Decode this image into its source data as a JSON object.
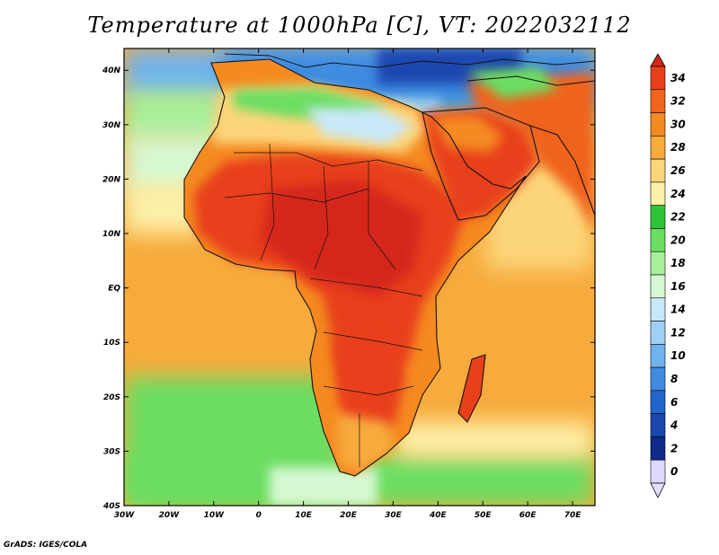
{
  "title": "Temperature at 1000hPa [C], VT: 2022032112",
  "credit": "GrADS: IGES/COLA",
  "map": {
    "lon_range": [
      -30,
      75
    ],
    "lat_range": [
      -40,
      44
    ],
    "lon_ticks": [
      "30W",
      "20W",
      "10W",
      "0",
      "10E",
      "20E",
      "30E",
      "40E",
      "50E",
      "60E",
      "70E"
    ],
    "lat_ticks": [
      "40N",
      "30N",
      "20N",
      "10N",
      "EQ",
      "10S",
      "20S",
      "30S",
      "40S"
    ]
  },
  "colorbar": {
    "labels": [
      "34",
      "32",
      "30",
      "28",
      "26",
      "24",
      "22",
      "20",
      "18",
      "16",
      "14",
      "12",
      "10",
      "8",
      "6",
      "4",
      "2",
      "0"
    ],
    "colors": [
      "#e8401a",
      "#f0641c",
      "#f58a20",
      "#f7ab3c",
      "#fcd57a",
      "#fdf0a8",
      "#2ec43a",
      "#6bde62",
      "#a8f09a",
      "#d6f8d2",
      "#c8e8fa",
      "#9ed0f5",
      "#6fb2ee",
      "#3e8be0",
      "#2266cc",
      "#1a46b0",
      "#0f2a8a",
      "#ded8ff"
    ],
    "top_color": "#d5281a",
    "bottom_color": "#e2e0ff"
  }
}
